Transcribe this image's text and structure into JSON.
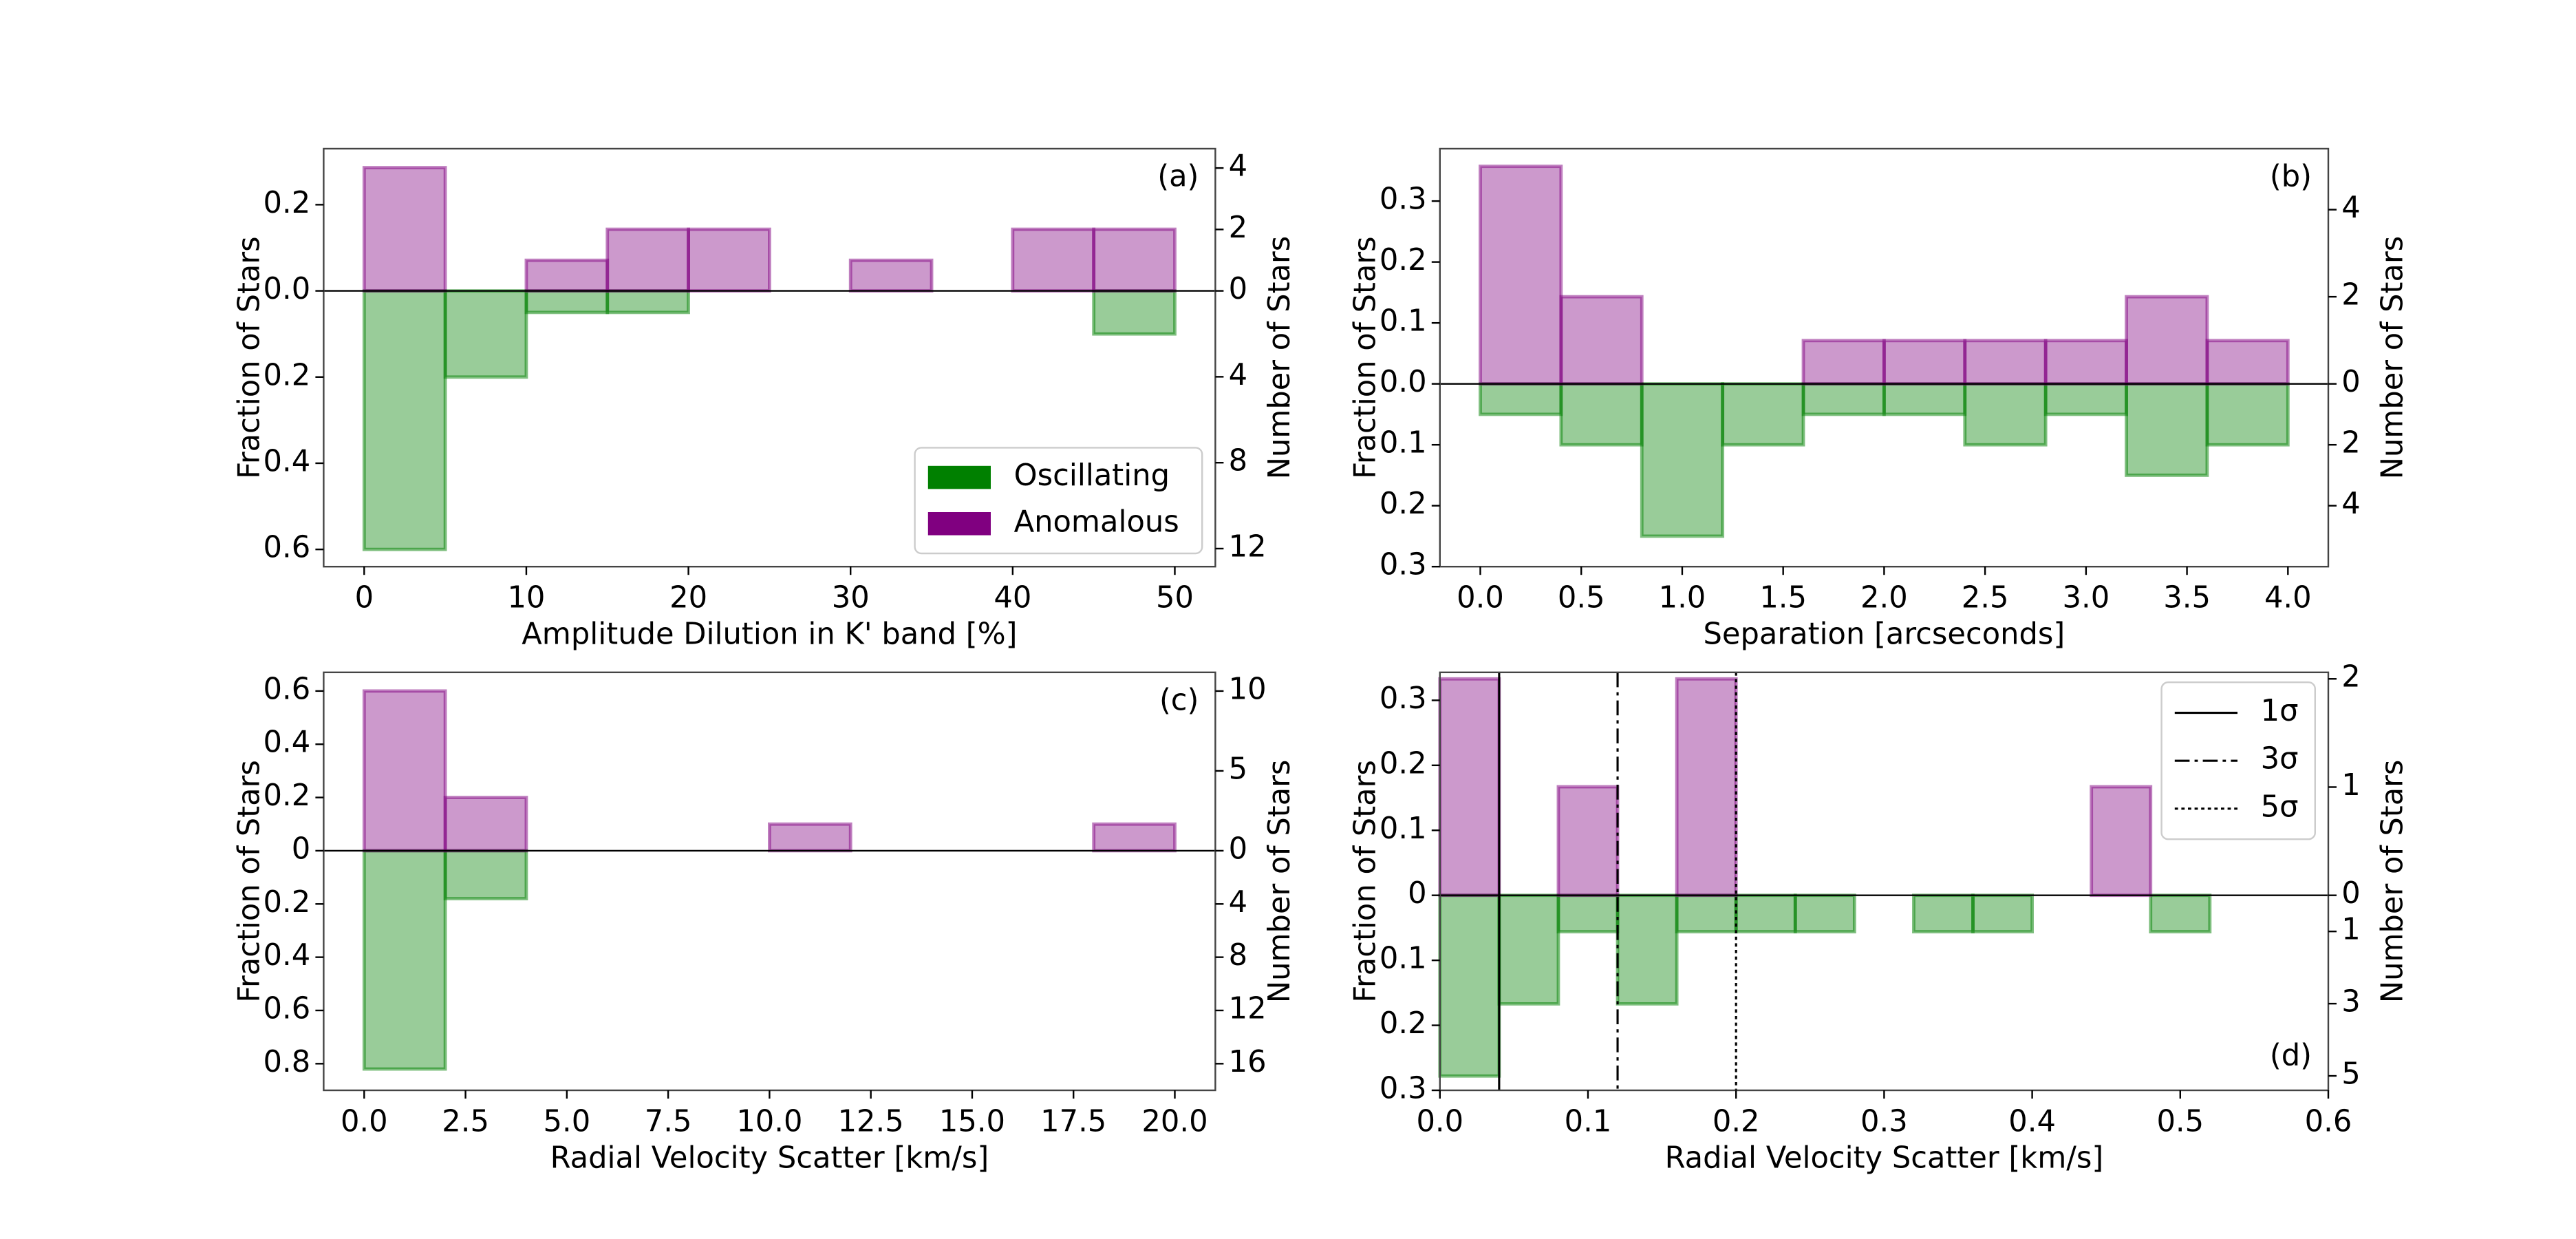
{
  "chart_data": [
    {
      "type": "histogram",
      "annotation": "(a)",
      "annotation_corner": "upper right",
      "xlabel": "Amplitude Dilution in K' band [%]",
      "ylabel": "Fraction of Stars",
      "y2label": "Number of Stars",
      "bins": [
        0,
        5,
        10,
        15,
        20,
        25,
        30,
        35,
        40,
        45,
        50
      ],
      "series": [
        {
          "name": "Oscillating",
          "color": "#008000",
          "values": [
            -0.6,
            -0.2,
            -0.05,
            -0.05,
            0,
            0,
            0,
            0,
            0,
            -0.1
          ]
        },
        {
          "name": "Anomalous",
          "color": "#800080",
          "values": [
            0.286,
            0,
            0.071,
            0.143,
            0.143,
            0,
            0.071,
            0,
            0.143,
            0.143
          ]
        }
      ],
      "legend": "lower right",
      "xlim": [
        -2.5,
        52.5
      ],
      "xticks": [
        0,
        10,
        20,
        30,
        40,
        50
      ],
      "ylim": [
        -0.64,
        0.33
      ],
      "yticks": [
        {
          "value": -0.6,
          "label": "0.6"
        },
        {
          "value": -0.4,
          "label": "0.4"
        },
        {
          "value": -0.2,
          "label": "0.2"
        },
        {
          "value": 0,
          "label": "0.0"
        },
        0.2
      ],
      "y2lim": [
        -12.84,
        4.63
      ],
      "y2ticks": [
        {
          "value": -12,
          "label": "12"
        },
        {
          "value": -8,
          "label": "8"
        },
        {
          "value": -4,
          "label": "4"
        },
        0,
        2,
        4
      ]
    },
    {
      "type": "histogram",
      "annotation": "(b)",
      "annotation_corner": "upper right",
      "xlabel": "Separation [arcseconds]",
      "ylabel": "Fraction of Stars",
      "y2label": "Number of Stars",
      "bins": [
        0,
        0.4,
        0.8,
        1.2,
        1.6,
        2.0,
        2.4,
        2.8,
        3.2,
        3.6,
        4.0
      ],
      "series": [
        {
          "color": "#008000",
          "values": [
            -0.05,
            -0.1,
            -0.25,
            -0.1,
            -0.05,
            -0.05,
            -0.1,
            -0.05,
            -0.15,
            -0.1
          ]
        },
        {
          "color": "#800080",
          "values": [
            0.357,
            0.143,
            0,
            0,
            0.071,
            0.071,
            0.071,
            0.071,
            0.143,
            0.071
          ]
        }
      ],
      "xlim": [
        -0.2,
        4.2
      ],
      "xticks": [
        {
          "value": 0,
          "label": "0.0"
        },
        0.5,
        {
          "value": 1,
          "label": "1.0"
        },
        1.5,
        {
          "value": 2,
          "label": "2.0"
        },
        2.5,
        {
          "value": 3,
          "label": "3.0"
        },
        3.5,
        {
          "value": 4,
          "label": "4.0"
        }
      ],
      "ylim": [
        -0.3,
        0.386
      ],
      "yticks": [
        {
          "value": -0.3,
          "label": "0.3"
        },
        {
          "value": -0.2,
          "label": "0.2"
        },
        {
          "value": -0.1,
          "label": "0.1"
        },
        {
          "value": 0,
          "label": "0.0"
        },
        0.1,
        0.2,
        0.3
      ],
      "y2lim": [
        -6,
        5.4
      ],
      "y2ticks": [
        {
          "value": -4,
          "label": "4"
        },
        {
          "value": -2,
          "label": "2"
        },
        0,
        2,
        4
      ]
    },
    {
      "type": "histogram",
      "annotation": "(c)",
      "annotation_corner": "upper right",
      "xlabel": "Radial Velocity Scatter [km/s]",
      "ylabel": "Fraction of Stars",
      "y2label": "Number of Stars",
      "bins": [
        0,
        2,
        4,
        6,
        8,
        10,
        12,
        14,
        16,
        18,
        20
      ],
      "series": [
        {
          "color": "#008000",
          "values": [
            -0.82,
            -0.18,
            0,
            0,
            0,
            0,
            0,
            0,
            0,
            0
          ]
        },
        {
          "color": "#800080",
          "values": [
            0.6,
            0.2,
            0,
            0,
            0,
            0.1,
            0,
            0,
            0,
            0.1
          ]
        }
      ],
      "xlim": [
        -1,
        21
      ],
      "xticks": [
        {
          "value": 0,
          "label": "0.0"
        },
        2.5,
        {
          "value": 5,
          "label": "5.0"
        },
        7.5,
        {
          "value": 10,
          "label": "10.0"
        },
        12.5,
        {
          "value": 15,
          "label": "15.0"
        },
        17.5,
        {
          "value": 20,
          "label": "20.0"
        }
      ],
      "ylim": [
        -0.9,
        0.67
      ],
      "yticks": [
        {
          "value": -0.8,
          "label": "0.8"
        },
        {
          "value": -0.6,
          "label": "0.6"
        },
        {
          "value": -0.4,
          "label": "0.4"
        },
        {
          "value": -0.2,
          "label": "0.2"
        },
        0,
        0.2,
        0.4,
        0.6
      ],
      "y2lim": [
        -18,
        11.17
      ],
      "y2ticks": [
        {
          "value": -16,
          "label": "16"
        },
        {
          "value": -12,
          "label": "12"
        },
        {
          "value": -8,
          "label": "8"
        },
        {
          "value": -4,
          "label": "4"
        },
        0,
        5,
        10
      ]
    },
    {
      "type": "histogram",
      "annotation": "(d)",
      "annotation_corner": "lower right",
      "xlabel": "Radial Velocity Scatter [km/s]",
      "ylabel": "Fraction of Stars",
      "y2label": "Number of Stars",
      "bins": [
        0,
        0.04,
        0.08,
        0.12,
        0.16,
        0.2,
        0.24,
        0.28,
        0.32,
        0.36,
        0.4,
        0.44,
        0.48,
        0.52
      ],
      "series": [
        {
          "color": "#008000",
          "values": [
            -0.278,
            -0.167,
            -0.056,
            -0.167,
            -0.056,
            -0.056,
            -0.056,
            0,
            -0.056,
            -0.056,
            0,
            0,
            -0.056
          ]
        },
        {
          "color": "#800080",
          "values": [
            0.333,
            0,
            0.167,
            0,
            0.333,
            0,
            0,
            0,
            0,
            0,
            0,
            0.167,
            0
          ]
        }
      ],
      "vlines": [
        {
          "label": "1σ",
          "x": 0.04,
          "style": "solid"
        },
        {
          "label": "3σ",
          "x": 0.12,
          "style": "dashdot"
        },
        {
          "label": "5σ",
          "x": 0.2,
          "style": "dotted"
        }
      ],
      "legend": "upper right",
      "xlim": [
        0,
        0.6
      ],
      "xticks": [
        {
          "value": 0,
          "label": "0.0"
        },
        0.1,
        0.2,
        0.3,
        0.4,
        0.5,
        0.6
      ],
      "ylim": [
        -0.3,
        0.343
      ],
      "yticks": [
        {
          "value": -0.3,
          "label": "0.3"
        },
        {
          "value": -0.2,
          "label": "0.2"
        },
        {
          "value": -0.1,
          "label": "0.1"
        },
        0,
        0.1,
        0.2,
        0.3
      ],
      "y2lim": [
        -5.4,
        2.06
      ],
      "y2ticks": [
        {
          "value": -5,
          "label": "5"
        },
        {
          "value": -3,
          "label": "3"
        },
        {
          "value": -1,
          "label": "1"
        },
        0,
        1,
        2
      ]
    }
  ]
}
